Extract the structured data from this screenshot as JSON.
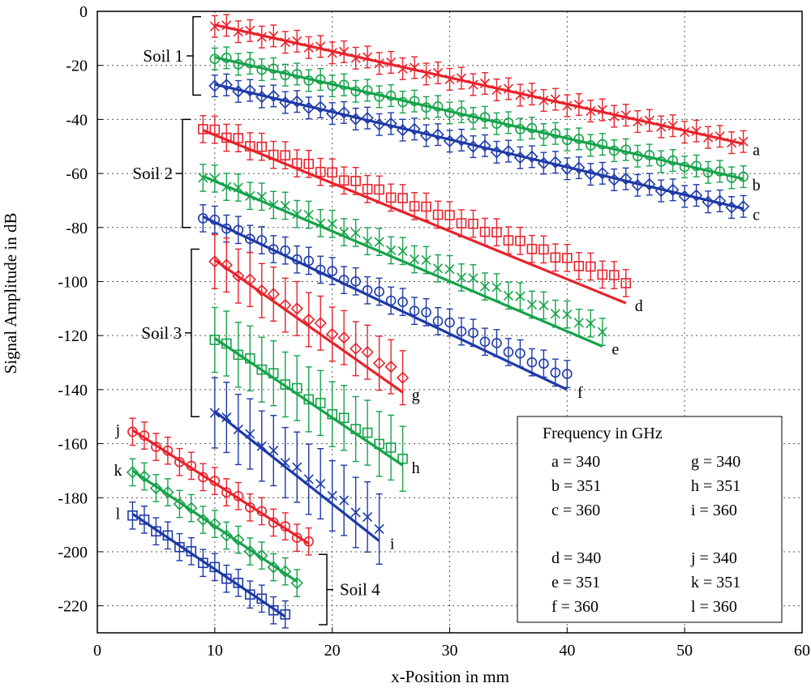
{
  "colors": {
    "red": "#e8222b",
    "green": "#16a34a",
    "blue": "#1e3aa8"
  },
  "chart_data": {
    "type": "scatter",
    "title": "",
    "xlabel": "x-Position in mm",
    "ylabel": "Signal Amplitude in dB",
    "xlim": [
      0,
      60
    ],
    "ylim": [
      -230,
      0
    ],
    "xticks": [
      0,
      10,
      20,
      30,
      40,
      50,
      60
    ],
    "yticks": [
      0,
      -20,
      -40,
      -60,
      -80,
      -100,
      -120,
      -140,
      -160,
      -180,
      -200,
      -220
    ],
    "grid": true,
    "series": [
      {
        "name": "a",
        "color": "red",
        "marker": "x",
        "x0": 10,
        "x1": 55,
        "y0": -5,
        "y1": -49,
        "fit0": -5,
        "fit1": -49,
        "err": 4
      },
      {
        "name": "b",
        "color": "green",
        "marker": "circle",
        "x0": 10,
        "x1": 55,
        "y0": -17,
        "y1": -62,
        "fit0": -17,
        "fit1": -62,
        "err": 4
      },
      {
        "name": "c",
        "color": "blue",
        "marker": "diamond",
        "x0": 10,
        "x1": 55,
        "y0": -27,
        "y1": -73,
        "fit0": -27,
        "fit1": -73,
        "err": 4
      },
      {
        "name": "d",
        "color": "red",
        "marker": "square",
        "x0": 9,
        "x1": 45,
        "y0": -43,
        "y1": -100,
        "fit0": -44,
        "fit1": -108,
        "err": 5
      },
      {
        "name": "e",
        "color": "green",
        "marker": "x",
        "x0": 9,
        "x1": 43,
        "y0": -61,
        "y1": -118,
        "fit0": -61,
        "fit1": -124,
        "err": 5
      },
      {
        "name": "f",
        "color": "blue",
        "marker": "circle",
        "x0": 9,
        "x1": 40,
        "y0": -76,
        "y1": -135,
        "fit0": -76,
        "fit1": -140,
        "err": 5
      },
      {
        "name": "g",
        "color": "red",
        "marker": "diamond",
        "x0": 10,
        "x1": 26,
        "y0": -92,
        "y1": -135,
        "fit0": -92,
        "fit1": -141,
        "err": 10
      },
      {
        "name": "h",
        "color": "green",
        "marker": "square",
        "x0": 10,
        "x1": 26,
        "y0": -121,
        "y1": -165,
        "fit0": -121,
        "fit1": -168,
        "err": 12
      },
      {
        "name": "i",
        "color": "blue",
        "marker": "x",
        "x0": 10,
        "x1": 24,
        "y0": -148,
        "y1": -191,
        "fit0": -148,
        "fit1": -196,
        "err": 13
      },
      {
        "name": "j",
        "color": "red",
        "marker": "circle",
        "x0": 3,
        "x1": 18,
        "y0": -155,
        "y1": -197,
        "fit0": -155,
        "fit1": -197,
        "err": 5
      },
      {
        "name": "k",
        "color": "green",
        "marker": "diamond",
        "x0": 3,
        "x1": 17,
        "y0": -170,
        "y1": -211,
        "fit0": -170,
        "fit1": -211,
        "err": 5
      },
      {
        "name": "l",
        "color": "blue",
        "marker": "square",
        "x0": 3,
        "x1": 16,
        "y0": -186,
        "y1": -224,
        "fit0": -186,
        "fit1": -224,
        "err": 5
      }
    ],
    "groups": [
      {
        "label": "Soil 1",
        "ylim": [
          -2,
          -31
        ]
      },
      {
        "label": "Soil 2",
        "ylim": [
          -40,
          -80
        ]
      },
      {
        "label": "Soil 3",
        "ylim": [
          -88,
          -150
        ]
      },
      {
        "label": "Soil 4",
        "ylim": [
          -201,
          -227
        ]
      }
    ],
    "legend": {
      "title": "Frequency in GHz",
      "placement": "bottom-right",
      "entries": [
        "a = 340",
        "g = 340",
        "b = 351",
        "h = 351",
        "c = 360",
        "i = 360",
        "d = 340",
        "j = 340",
        "e = 351",
        "k = 351",
        "f = 360",
        "l = 360"
      ]
    }
  }
}
